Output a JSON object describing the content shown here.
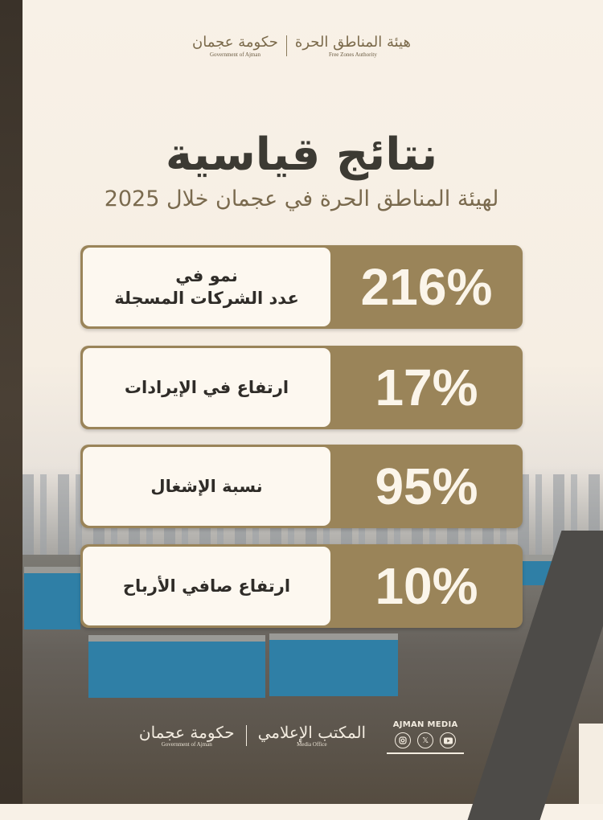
{
  "header": {
    "logos": [
      {
        "arabic": "حكومة عجمان",
        "english": "Government of Ajman"
      },
      {
        "arabic": "هيئة المناطق الحرة",
        "english": "Free Zones Authority"
      }
    ]
  },
  "title": "نتائج قياسية",
  "subtitle": "لهيئة المناطق الحرة في عجمان خلال 2025",
  "stats": [
    {
      "value": "216%",
      "label": "نمو في\nعدد الشركات المسجلة"
    },
    {
      "value": "17%",
      "label": "ارتفاع في الإيرادات"
    },
    {
      "value": "95%",
      "label": "نسبة الإشغال"
    },
    {
      "value": "10%",
      "label": "ارتفاع صافي الأرباح"
    }
  ],
  "footer": {
    "logos": [
      {
        "arabic": "حكومة عجمان",
        "english": "Government of Ajman"
      },
      {
        "arabic": "المكتب الإعلامي",
        "english": "Media Office"
      }
    ],
    "media_name": "AJMAN MEDIA",
    "social_icons": [
      "instagram-icon",
      "x-icon",
      "youtube-icon"
    ]
  },
  "colors": {
    "accent": "#9a8459",
    "card": "#fdf8f0",
    "title": "#3c3a33",
    "subtitle": "#7a6a4e"
  }
}
